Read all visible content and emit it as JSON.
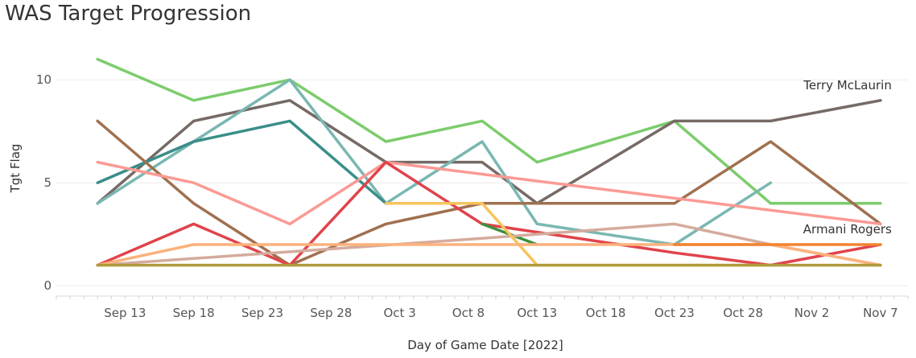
{
  "chart_data": {
    "type": "line",
    "title": "WAS Target Progression",
    "xlabel": "Day of Game Date [2022]",
    "ylabel": "Tgt Flag",
    "x_ticks": [
      {
        "date": "2022-09-13",
        "label": "Sep 13"
      },
      {
        "date": "2022-09-18",
        "label": "Sep 18"
      },
      {
        "date": "2022-09-23",
        "label": "Sep 23"
      },
      {
        "date": "2022-09-28",
        "label": "Sep 28"
      },
      {
        "date": "2022-10-03",
        "label": "Oct 3"
      },
      {
        "date": "2022-10-08",
        "label": "Oct 8"
      },
      {
        "date": "2022-10-13",
        "label": "Oct 13"
      },
      {
        "date": "2022-10-18",
        "label": "Oct 18"
      },
      {
        "date": "2022-10-23",
        "label": "Oct 23"
      },
      {
        "date": "2022-10-28",
        "label": "Oct 28"
      },
      {
        "date": "2022-11-02",
        "label": "Nov 2"
      },
      {
        "date": "2022-11-07",
        "label": "Nov 7"
      }
    ],
    "xlim": [
      "2022-09-08",
      "2022-11-09"
    ],
    "y_ticks": [
      0,
      5,
      10
    ],
    "ylim": [
      -0.5,
      12
    ],
    "grid": "horizontal",
    "series": [
      {
        "color": "#7ccc6c",
        "x": [
          "2022-09-11",
          "2022-09-18",
          "2022-09-25",
          "2022-10-02",
          "2022-10-09",
          "2022-10-13",
          "2022-10-23",
          "2022-10-30",
          "2022-11-07"
        ],
        "y": [
          11,
          9,
          10,
          7,
          8,
          6,
          8,
          4,
          4
        ]
      },
      {
        "color": "#766a66",
        "name": "Terry McLaurin",
        "x": [
          "2022-09-11",
          "2022-09-18",
          "2022-09-25",
          "2022-10-02",
          "2022-10-09",
          "2022-10-13",
          "2022-10-23",
          "2022-10-30",
          "2022-11-07"
        ],
        "y": [
          4,
          8,
          9,
          6,
          6,
          4,
          8,
          8,
          9
        ]
      },
      {
        "color": "#7ab7b1",
        "x": [
          "2022-09-11",
          "2022-09-18",
          "2022-09-25",
          "2022-10-02",
          "2022-10-09",
          "2022-10-13",
          "2022-10-23",
          "2022-10-30"
        ],
        "y": [
          4,
          7,
          10,
          4,
          7,
          3,
          2,
          5
        ]
      },
      {
        "color": "#3a8e89",
        "x": [
          "2022-09-11",
          "2022-09-18",
          "2022-09-25",
          "2022-10-02"
        ],
        "y": [
          5,
          7,
          8,
          4
        ]
      },
      {
        "color": "#a0704f",
        "x": [
          "2022-09-11",
          "2022-09-18",
          "2022-09-25",
          "2022-10-02",
          "2022-10-09",
          "2022-10-13",
          "2022-10-23",
          "2022-10-30",
          "2022-11-07"
        ],
        "y": [
          8,
          4,
          1,
          3,
          4,
          4,
          4,
          7,
          3
        ]
      },
      {
        "color": "#fb9a94",
        "x": [
          "2022-09-11",
          "2022-09-18",
          "2022-09-25",
          "2022-10-02",
          "2022-11-07"
        ],
        "y": [
          6,
          5,
          3,
          6,
          3
        ]
      },
      {
        "color": "#e0434b",
        "x": [
          "2022-09-11",
          "2022-09-18",
          "2022-09-25",
          "2022-10-02",
          "2022-10-09",
          "2022-10-23",
          "2022-10-30",
          "2022-11-07"
        ],
        "y": [
          1,
          3,
          1,
          6,
          3,
          1.6,
          1,
          2
        ]
      },
      {
        "color": "#3f8f3f",
        "x": [
          "2022-10-09",
          "2022-10-13"
        ],
        "y": [
          3,
          2
        ]
      },
      {
        "color": "#d4ab9d",
        "x": [
          "2022-09-11",
          "2022-10-09",
          "2022-10-23",
          "2022-10-30",
          "2022-11-07"
        ],
        "y": [
          1,
          2.3,
          3,
          2,
          1
        ]
      },
      {
        "color": "#f7c45c",
        "x": [
          "2022-10-02",
          "2022-10-09",
          "2022-10-13",
          "2022-10-30"
        ],
        "y": [
          4,
          4,
          1,
          1
        ]
      },
      {
        "color": "#fbb27b",
        "x": [
          "2022-09-11",
          "2022-09-18",
          "2022-10-23",
          "2022-10-30",
          "2022-11-07"
        ],
        "y": [
          1,
          2,
          2,
          2,
          1
        ]
      },
      {
        "color": "#f28330",
        "name": "Armani Rogers",
        "x": [
          "2022-10-23",
          "2022-11-07"
        ],
        "y": [
          2,
          2
        ]
      },
      {
        "color": "#b09a3a",
        "x": [
          "2022-09-11",
          "2022-11-07"
        ],
        "y": [
          1,
          1
        ]
      }
    ]
  }
}
